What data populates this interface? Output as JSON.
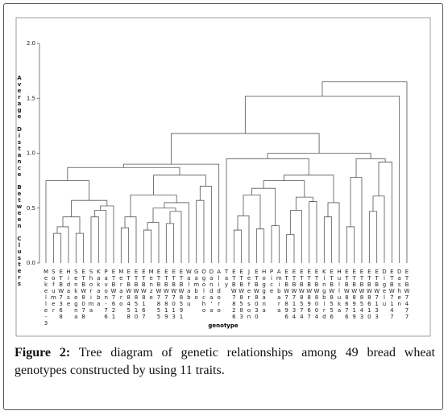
{
  "chart_data": {
    "type": "dendrogram",
    "x_label": "genotype",
    "y_label": "Average Distance Between Clusters",
    "ylim": [
      0,
      2
    ],
    "yticks": [
      {
        "value": 0,
        "label": "0.0"
      },
      {
        "value": 0.5,
        "label": "0.5"
      },
      {
        "value": 1,
        "label": "1.0"
      },
      {
        "value": 1.5,
        "label": "1.5"
      },
      {
        "value": 2,
        "label": "2.0"
      }
    ],
    "color": "#555555",
    "leaves": [
      "Mekelle-3",
      "Sofumer",
      "ETBW7368",
      "Hidase",
      "Senkegna",
      "ETBW8078",
      "Shorima",
      "Kakaba",
      "Pavon-76",
      "ETBW7621",
      "Meraro",
      "ETBW8458",
      "ETBW8510",
      "ETBW8167",
      "Menze",
      "ETBW7855",
      "ETBW7819",
      "ETBW7013",
      "ETBW8591",
      "Walabu",
      "Gambo",
      "Ogolcho",
      "Danda'a",
      "Alidoro",
      "Tay",
      "ETBW7826",
      "ETBW8583",
      "Jeferson",
      "ETBW8030",
      "Hoggana",
      "Pice",
      "Amibara",
      "ETBW7896",
      "ETBW7134",
      "ETBW8574",
      "ETBW8967",
      "ETBW8004",
      "Kingbird",
      "ETBW8556",
      "Hulluka",
      "ETBW8676",
      "ETBW8919",
      "ETBW8543",
      "ETBW8610",
      "ETBW7133",
      "Digelu",
      "ETBW7147",
      "Dashen",
      "ETBW7477"
    ],
    "merges": [
      {
        "left": 1,
        "right": 2,
        "height": 0.27
      },
      {
        "left": 49,
        "right": 3,
        "height": 0.33
      },
      {
        "left": 4,
        "right": 5,
        "height": 0.27
      },
      {
        "left": 50,
        "right": 51,
        "height": 0.42
      },
      {
        "left": 6,
        "right": 7,
        "height": 0.42
      },
      {
        "left": 53,
        "right": 8,
        "height": 0.48
      },
      {
        "left": 54,
        "right": 9,
        "height": 0.52
      },
      {
        "left": 52,
        "right": 55,
        "height": 0.57
      },
      {
        "left": 0,
        "right": 56,
        "height": 0.75
      },
      {
        "left": 10,
        "right": 11,
        "height": 0.32
      },
      {
        "left": 58,
        "right": 12,
        "height": 0.42
      },
      {
        "left": 13,
        "right": 14,
        "height": 0.3
      },
      {
        "left": 60,
        "right": 15,
        "height": 0.37
      },
      {
        "left": 16,
        "right": 17,
        "height": 0.36
      },
      {
        "left": 62,
        "right": 18,
        "height": 0.47
      },
      {
        "left": 61,
        "right": 63,
        "height": 0.5
      },
      {
        "left": 64,
        "right": 19,
        "height": 0.55
      },
      {
        "left": 59,
        "right": 65,
        "height": 0.62
      },
      {
        "left": 20,
        "right": 21,
        "height": 0.57
      },
      {
        "left": 67,
        "right": 22,
        "height": 0.7
      },
      {
        "left": 66,
        "right": 68,
        "height": 0.8
      },
      {
        "left": 57,
        "right": 69,
        "height": 0.87
      },
      {
        "left": 70,
        "right": 23,
        "height": 0.9
      },
      {
        "left": 25,
        "right": 26,
        "height": 0.3
      },
      {
        "left": 72,
        "right": 27,
        "height": 0.43
      },
      {
        "left": 28,
        "right": 29,
        "height": 0.31
      },
      {
        "left": 73,
        "right": 74,
        "height": 0.62
      },
      {
        "left": 30,
        "right": 31,
        "height": 0.34
      },
      {
        "left": 75,
        "right": 76,
        "height": 0.68
      },
      {
        "left": 32,
        "right": 33,
        "height": 0.26
      },
      {
        "left": 78,
        "right": 34,
        "height": 0.48
      },
      {
        "left": 35,
        "right": 36,
        "height": 0.56
      },
      {
        "left": 79,
        "right": 80,
        "height": 0.6
      },
      {
        "left": 77,
        "right": 81,
        "height": 0.75
      },
      {
        "left": 37,
        "right": 38,
        "height": 0.42
      },
      {
        "left": 83,
        "right": 39,
        "height": 0.55
      },
      {
        "left": 82,
        "right": 84,
        "height": 0.8
      },
      {
        "left": 24,
        "right": 85,
        "height": 0.95
      },
      {
        "left": 40,
        "right": 41,
        "height": 0.33
      },
      {
        "left": 87,
        "right": 42,
        "height": 0.78
      },
      {
        "left": 43,
        "right": 44,
        "height": 0.47
      },
      {
        "left": 89,
        "right": 45,
        "height": 0.61
      },
      {
        "left": 90,
        "right": 46,
        "height": 0.92
      },
      {
        "left": 88,
        "right": 91,
        "height": 0.95
      },
      {
        "left": 86,
        "right": 92,
        "height": 1.0
      },
      {
        "left": 71,
        "right": 93,
        "height": 1.18
      },
      {
        "left": 94,
        "right": 47,
        "height": 1.52
      },
      {
        "left": 95,
        "right": 48,
        "height": 1.65
      }
    ]
  },
  "caption": {
    "label": "Figure 2:",
    "text": "Tree diagram of genetic relationships among 49 bread wheat genotypes constructed by using 11 traits."
  }
}
